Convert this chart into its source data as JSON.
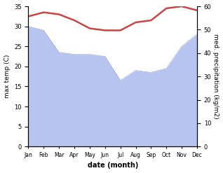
{
  "months": [
    "Jan",
    "Feb",
    "Mar",
    "Apr",
    "May",
    "Jun",
    "Jul",
    "Aug",
    "Sep",
    "Oct",
    "Nov",
    "Dec"
  ],
  "x": [
    1,
    2,
    3,
    4,
    5,
    6,
    7,
    8,
    9,
    10,
    11,
    12
  ],
  "temperature": [
    32.5,
    33.5,
    33.0,
    31.5,
    29.5,
    29.0,
    29.0,
    31.0,
    31.5,
    34.5,
    35.0,
    34.0
  ],
  "precipitation_left_scale": [
    30.0,
    29.0,
    23.5,
    23.0,
    23.0,
    22.5,
    16.5,
    19.0,
    18.5,
    19.5,
    25.0,
    28.0
  ],
  "temp_color": "#cc4444",
  "precip_fill_color": "#b8c4f0",
  "precip_edge_color": "#9aaae0",
  "ylim_left": [
    0,
    35
  ],
  "ylim_right": [
    0,
    60
  ],
  "yticks_left": [
    0,
    5,
    10,
    15,
    20,
    25,
    30,
    35
  ],
  "yticks_right": [
    0,
    10,
    20,
    30,
    40,
    50,
    60
  ],
  "ylabel_left": "max temp (C)",
  "ylabel_right": "med. precipitation (kg/m2)",
  "xlabel": "date (month)",
  "temp_linewidth": 1.8,
  "background_color": "#ffffff"
}
